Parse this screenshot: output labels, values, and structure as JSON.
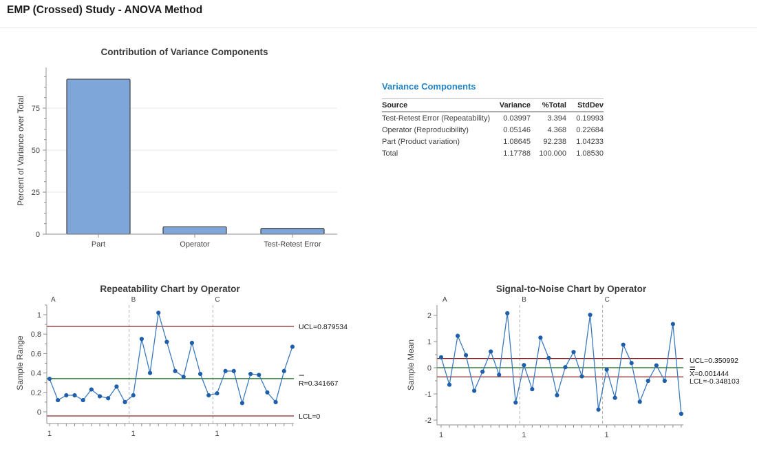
{
  "page_title": "EMP (Crossed) Study - ANOVA Method",
  "colors": {
    "heading_blue": "#2484c6",
    "bar_fill": "#7ea6d8",
    "bar_stroke": "#404040",
    "data_point": "#1f5ea8",
    "data_line": "#3c79bd",
    "limit_line": "#8b2222",
    "center_line": "#2e7d32",
    "axis": "#8f8f8f",
    "grid": "#e9e9e9",
    "dashed_divider": "#b0b0b0",
    "text": "#3f3f3f"
  },
  "variance_table": {
    "title": "Variance Components",
    "columns": [
      "Source",
      "Variance",
      "%Total",
      "StdDev"
    ],
    "rows": [
      [
        "Test-Retest Error (Repeatability)",
        "0.03997",
        "3.394",
        "0.19993"
      ],
      [
        "Operator (Reproducibility)",
        "0.05146",
        "4.368",
        "0.22684"
      ],
      [
        "Part (Product variation)",
        "1.08645",
        "92.238",
        "1.04233"
      ],
      [
        "Total",
        "1.17788",
        "100.000",
        "1.08530"
      ]
    ]
  },
  "chart_data": [
    {
      "id": "contribution",
      "type": "bar",
      "title": "Contribution of Variance Components",
      "ylabel": "Percent of Variance over Total",
      "categories": [
        "Part",
        "Operator",
        "Test-Retest Error"
      ],
      "values": [
        92.238,
        4.368,
        3.394
      ],
      "ylim": [
        0,
        100
      ],
      "yticks": [
        0,
        25,
        50,
        75
      ],
      "grid": true
    },
    {
      "id": "repeatability",
      "type": "line",
      "title": "Repeatability Chart by Operator",
      "ylabel": "Sample Range",
      "groups": [
        "A",
        "B",
        "C"
      ],
      "x_labels": [
        "1",
        "1",
        "1"
      ],
      "yticks": [
        0,
        0.2,
        0.4,
        0.6,
        0.8,
        1
      ],
      "ylim": [
        -0.08,
        1.1
      ],
      "series": [
        {
          "name": "A",
          "values": [
            0.34,
            0.12,
            0.17,
            0.17,
            0.12,
            0.23,
            0.16,
            0.14,
            0.26,
            0.1
          ]
        },
        {
          "name": "B",
          "values": [
            0.17,
            0.75,
            0.4,
            1.02,
            0.72,
            0.42,
            0.36,
            0.71,
            0.39,
            0.17
          ]
        },
        {
          "name": "C",
          "values": [
            0.19,
            0.42,
            0.42,
            0.09,
            0.39,
            0.38,
            0.2,
            0.1,
            0.42,
            0.67
          ]
        }
      ],
      "limit_lines": [
        {
          "label": "UCL=0.879534",
          "value": 0.879534,
          "type": "limit",
          "bar": "none"
        },
        {
          "label": "R=0.341667",
          "value": 0.341667,
          "type": "center",
          "bar": "single"
        },
        {
          "label": "LCL=0",
          "value": 0,
          "type": "limit",
          "bar": "none"
        }
      ]
    },
    {
      "id": "s2n",
      "type": "line",
      "title": "Signal-to-Noise Chart by Operator",
      "ylabel": "Sample Mean",
      "groups": [
        "A",
        "B",
        "C"
      ],
      "x_labels": [
        "1",
        "1",
        "1"
      ],
      "yticks": [
        -2,
        -1,
        0,
        1,
        2
      ],
      "ylim": [
        -2.2,
        2.35
      ],
      "series": [
        {
          "name": "A",
          "values": [
            0.4,
            -0.65,
            1.22,
            0.48,
            -0.88,
            -0.15,
            0.62,
            -0.27,
            2.08,
            -1.33
          ]
        },
        {
          "name": "B",
          "values": [
            0.1,
            -0.82,
            1.15,
            0.37,
            -1.05,
            0.02,
            0.6,
            -0.33,
            2.02,
            -1.6
          ]
        },
        {
          "name": "C",
          "values": [
            -0.07,
            -1.15,
            0.88,
            0.18,
            -1.3,
            -0.5,
            0.09,
            -0.5,
            1.67,
            -1.76
          ]
        }
      ],
      "limit_lines": [
        {
          "label": "UCL=0.350992",
          "value": 0.350992,
          "type": "limit",
          "bar": "none"
        },
        {
          "label": "X=0.001444",
          "value": 0.001444,
          "type": "center",
          "bar": "double"
        },
        {
          "label": "LCL=-0.348103",
          "value": -0.348103,
          "type": "limit",
          "bar": "none"
        }
      ]
    }
  ]
}
